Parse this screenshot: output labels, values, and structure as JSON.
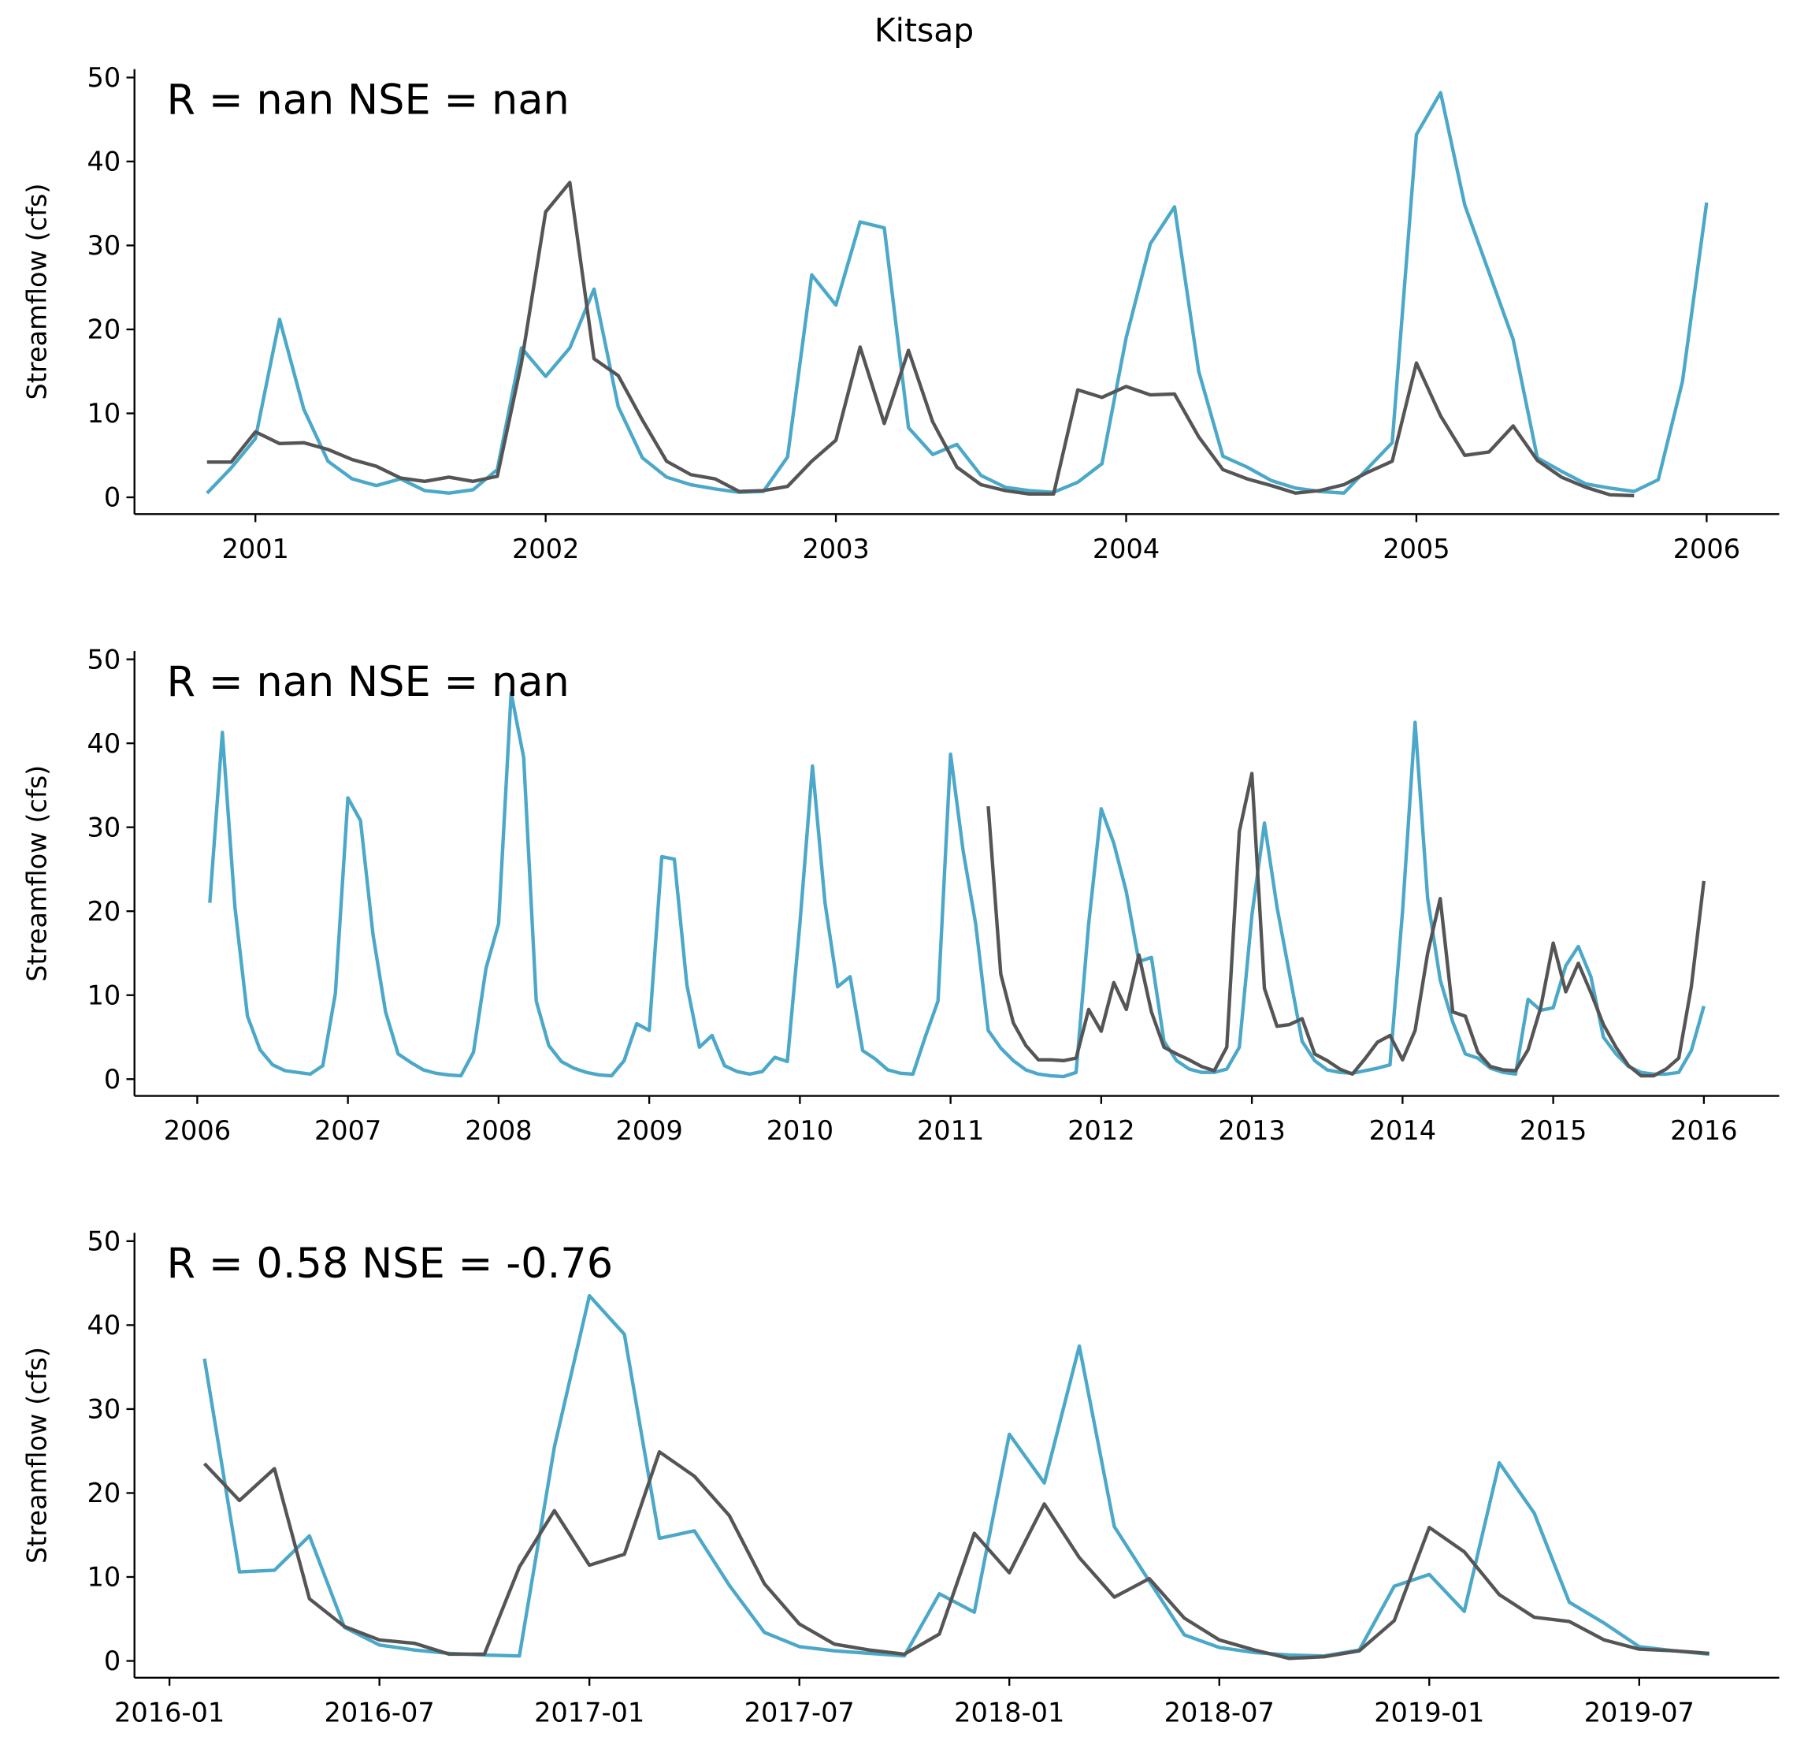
{
  "title": "Kitsap",
  "chart_data": [
    {
      "type": "line",
      "annotation": "R = nan  NSE = nan",
      "ylabel": "Streamflow (cfs)",
      "xlim": [
        "2000-08",
        "2006-04"
      ],
      "ylim": [
        -2,
        51
      ],
      "yticks": [
        0,
        10,
        20,
        30,
        40,
        50
      ],
      "xticks": [
        {
          "value": "2001-01",
          "label": "2001"
        },
        {
          "value": "2002-01",
          "label": "2002"
        },
        {
          "value": "2003-01",
          "label": "2003"
        },
        {
          "value": "2004-01",
          "label": "2004"
        },
        {
          "value": "2005-01",
          "label": "2005"
        },
        {
          "value": "2006-01",
          "label": "2006"
        }
      ],
      "x": [
        "2000-11",
        "2000-12",
        "2001-01",
        "2001-02",
        "2001-03",
        "2001-04",
        "2001-05",
        "2001-06",
        "2001-07",
        "2001-08",
        "2001-09",
        "2001-10",
        "2001-11",
        "2001-12",
        "2002-01",
        "2002-02",
        "2002-03",
        "2002-04",
        "2002-05",
        "2002-06",
        "2002-07",
        "2002-08",
        "2002-09",
        "2002-10",
        "2002-11",
        "2002-12",
        "2003-01",
        "2003-02",
        "2003-03",
        "2003-04",
        "2003-05",
        "2003-06",
        "2003-07",
        "2003-08",
        "2003-09",
        "2003-10",
        "2003-11",
        "2003-12",
        "2004-01",
        "2004-02",
        "2004-03",
        "2004-04",
        "2004-05",
        "2004-06",
        "2004-07",
        "2004-08",
        "2004-09",
        "2004-10",
        "2004-11",
        "2004-12",
        "2005-01",
        "2005-02",
        "2005-03",
        "2005-04",
        "2005-05",
        "2005-06",
        "2005-07",
        "2005-08",
        "2005-09",
        "2005-10",
        "2005-11",
        "2005-12",
        "2006-01"
      ],
      "series": [
        {
          "color": "#4ba8c8",
          "values": [
            0.5,
            3.5,
            7,
            21.2,
            10.5,
            4.3,
            2.2,
            1.4,
            2.2,
            0.8,
            0.5,
            0.9,
            3.3,
            17.8,
            14.4,
            17.8,
            24.8,
            10.8,
            4.7,
            2.4,
            1.5,
            1.0,
            0.6,
            0.7,
            4.8,
            26.5,
            22.9,
            32.8,
            32.1,
            8.3,
            5.1,
            6.3,
            2.6,
            1.2,
            0.8,
            0.6,
            1.8,
            4.0,
            19,
            30.2,
            34.6,
            15,
            4.9,
            3.6,
            2.0,
            1.1,
            0.7,
            0.5,
            3.5,
            6.5,
            43.2,
            48.2,
            34.8,
            26.8,
            18.8,
            4.7,
            3.1,
            1.6,
            1.1,
            0.7,
            2.1,
            13.8,
            35.1
          ]
        },
        {
          "color": "#555555",
          "values": [
            4.2,
            4.2,
            7.8,
            6.4,
            6.5,
            5.7,
            4.5,
            3.7,
            2.3,
            1.9,
            2.4,
            1.9,
            2.5,
            16,
            34,
            37.5,
            16.5,
            14.5,
            9.2,
            4.3,
            2.7,
            2.2,
            0.7,
            0.8,
            1.3,
            4.3,
            6.8,
            17.9,
            8.8,
            17.5,
            9,
            3.6,
            1.5,
            0.8,
            0.4,
            0.4,
            12.8,
            11.9,
            13.2,
            12.2,
            12.3,
            7.2,
            3.3,
            2.2,
            1.4,
            0.5,
            0.8,
            1.5,
            3.0,
            4.3,
            16,
            9.7,
            5,
            5.4,
            8.5,
            4.4,
            2.4,
            1.2,
            0.3,
            0.2,
            null,
            null,
            null
          ]
        }
      ]
    },
    {
      "type": "line",
      "annotation": "R = nan  NSE = nan",
      "ylabel": "Streamflow (cfs)",
      "xlim": [
        "2005-08",
        "2016-07"
      ],
      "ylim": [
        -2,
        51
      ],
      "yticks": [
        0,
        10,
        20,
        30,
        40,
        50
      ],
      "xticks": [
        {
          "value": "2006-01",
          "label": "2006"
        },
        {
          "value": "2007-01",
          "label": "2007"
        },
        {
          "value": "2008-01",
          "label": "2008"
        },
        {
          "value": "2009-01",
          "label": "2009"
        },
        {
          "value": "2010-01",
          "label": "2010"
        },
        {
          "value": "2011-01",
          "label": "2011"
        },
        {
          "value": "2012-01",
          "label": "2012"
        },
        {
          "value": "2013-01",
          "label": "2013"
        },
        {
          "value": "2014-01",
          "label": "2014"
        },
        {
          "value": "2015-01",
          "label": "2015"
        },
        {
          "value": "2016-01",
          "label": "2016"
        }
      ],
      "x": [
        "2006-02",
        "2006-03",
        "2006-04",
        "2006-05",
        "2006-06",
        "2006-07",
        "2006-08",
        "2006-09",
        "2006-10",
        "2006-11",
        "2006-12",
        "2007-01",
        "2007-02",
        "2007-03",
        "2007-04",
        "2007-05",
        "2007-06",
        "2007-07",
        "2007-08",
        "2007-09",
        "2007-10",
        "2007-11",
        "2007-12",
        "2008-01",
        "2008-02",
        "2008-03",
        "2008-04",
        "2008-05",
        "2008-06",
        "2008-07",
        "2008-08",
        "2008-09",
        "2008-10",
        "2008-11",
        "2008-12",
        "2009-01",
        "2009-02",
        "2009-03",
        "2009-04",
        "2009-05",
        "2009-06",
        "2009-07",
        "2009-08",
        "2009-09",
        "2009-10",
        "2009-11",
        "2009-12",
        "2010-01",
        "2010-02",
        "2010-03",
        "2010-04",
        "2010-05",
        "2010-06",
        "2010-07",
        "2010-08",
        "2010-09",
        "2010-10",
        "2010-11",
        "2010-12",
        "2011-01",
        "2011-02",
        "2011-03",
        "2011-04",
        "2011-05",
        "2011-06",
        "2011-07",
        "2011-08",
        "2011-09",
        "2011-10",
        "2011-11",
        "2011-12",
        "2012-01",
        "2012-02",
        "2012-03",
        "2012-04",
        "2012-05",
        "2012-06",
        "2012-07",
        "2012-08",
        "2012-09",
        "2012-10",
        "2012-11",
        "2012-12",
        "2013-01",
        "2013-02",
        "2013-03",
        "2013-04",
        "2013-05",
        "2013-06",
        "2013-07",
        "2013-08",
        "2013-09",
        "2013-10",
        "2013-11",
        "2013-12",
        "2014-01",
        "2014-02",
        "2014-03",
        "2014-04",
        "2014-05",
        "2014-06",
        "2014-07",
        "2014-08",
        "2014-09",
        "2014-10",
        "2014-11",
        "2014-12",
        "2015-01",
        "2015-02",
        "2015-03",
        "2015-04",
        "2015-05",
        "2015-06",
        "2015-07",
        "2015-08",
        "2015-09",
        "2015-10",
        "2015-11",
        "2015-12",
        "2016-01"
      ],
      "series": [
        {
          "color": "#4ba8c8",
          "values": [
            21,
            41.3,
            20.5,
            7.5,
            3.5,
            1.7,
            1,
            0.8,
            0.6,
            1.6,
            10.2,
            33.5,
            30.8,
            17.2,
            8,
            3,
            2,
            1.1,
            0.7,
            0.5,
            0.4,
            3.2,
            13.2,
            18.5,
            46,
            38.3,
            9.3,
            4,
            2.1,
            1.3,
            0.8,
            0.5,
            0.4,
            2.2,
            6.6,
            5.8,
            26.5,
            26.2,
            11.2,
            3.8,
            5.2,
            1.6,
            0.9,
            0.6,
            0.9,
            2.6,
            2.1,
            18.5,
            37.3,
            21,
            11,
            12.2,
            3.4,
            2.4,
            1.1,
            0.7,
            0.6,
            5.1,
            9.3,
            38.7,
            27.2,
            18.5,
            5.8,
            3.7,
            2.2,
            1.1,
            0.6,
            0.4,
            0.3,
            0.8,
            18.5,
            32.2,
            28.1,
            22.3,
            14,
            14.5,
            4.5,
            2.2,
            1.2,
            0.8,
            0.8,
            1.2,
            3.8,
            19.5,
            30.5,
            20.5,
            12.5,
            4.5,
            2.2,
            1.1,
            0.8,
            0.7,
            1.0,
            1.3,
            1.7,
            20,
            42.5,
            21.5,
            11.8,
            6.8,
            3,
            2.5,
            1.3,
            0.8,
            0.6,
            9.5,
            8.2,
            8.5,
            13.5,
            15.8,
            12.2,
            5,
            3,
            1.5,
            0.8,
            0.6,
            0.6,
            0.8,
            3.4,
            8.7
          ]
        },
        {
          "color": "#555555",
          "values": [
            null,
            null,
            null,
            null,
            null,
            null,
            null,
            null,
            null,
            null,
            null,
            null,
            null,
            null,
            null,
            null,
            null,
            null,
            null,
            null,
            null,
            null,
            null,
            null,
            null,
            null,
            null,
            null,
            null,
            null,
            null,
            null,
            null,
            null,
            null,
            null,
            null,
            null,
            null,
            null,
            null,
            null,
            null,
            null,
            null,
            null,
            null,
            null,
            null,
            null,
            null,
            null,
            null,
            null,
            null,
            null,
            null,
            null,
            null,
            null,
            null,
            null,
            32.5,
            12.5,
            6.7,
            4,
            2.3,
            2.3,
            2.2,
            2.5,
            8.3,
            5.7,
            11.5,
            8.3,
            14.8,
            8,
            3.8,
            3,
            2.3,
            1.5,
            1,
            3.8,
            29.5,
            36.4,
            10.8,
            6.3,
            6.5,
            7.2,
            3,
            2.2,
            1.2,
            0.6,
            2.4,
            4.4,
            5.2,
            2.3,
            5.8,
            15,
            21.5,
            8,
            7.5,
            3.2,
            1.5,
            1.1,
            1,
            3.5,
            8.5,
            16.2,
            10.4,
            13.8,
            10.3,
            6.5,
            3.8,
            1.6,
            0.4,
            0.4,
            1.2,
            2.5,
            11,
            23.6
          ]
        }
      ]
    },
    {
      "type": "line",
      "annotation": "R = 0.58  NSE = -0.76",
      "ylabel": "Streamflow (cfs)",
      "xlim": [
        "2015-12",
        "2019-11"
      ],
      "ylim": [
        -2,
        51
      ],
      "yticks": [
        0,
        10,
        20,
        30,
        40,
        50
      ],
      "xticks": [
        "2016-01",
        "2016-07",
        "2017-01",
        "2017-07",
        "2018-01",
        "2018-07",
        "2019-01",
        "2019-07"
      ],
      "x": [
        "2016-02",
        "2016-03",
        "2016-04",
        "2016-05",
        "2016-06",
        "2016-07",
        "2016-08",
        "2016-09",
        "2016-10",
        "2016-11",
        "2016-12",
        "2017-01",
        "2017-02",
        "2017-03",
        "2017-04",
        "2017-05",
        "2017-06",
        "2017-07",
        "2017-08",
        "2017-09",
        "2017-10",
        "2017-11",
        "2017-12",
        "2018-01",
        "2018-02",
        "2018-03",
        "2018-04",
        "2018-05",
        "2018-06",
        "2018-07",
        "2018-08",
        "2018-09",
        "2018-10",
        "2018-11",
        "2018-12",
        "2019-01",
        "2019-02",
        "2019-03",
        "2019-04",
        "2019-05",
        "2019-06",
        "2019-07",
        "2019-08",
        "2019-09"
      ],
      "series": [
        {
          "color": "#4ba8c8",
          "values": [
            36,
            10.6,
            10.8,
            14.9,
            4,
            1.9,
            1.3,
            0.9,
            0.7,
            0.6,
            25.5,
            43.5,
            38.9,
            14.6,
            15.5,
            9,
            3.4,
            1.7,
            1.2,
            0.9,
            0.6,
            8,
            5.8,
            27,
            21.2,
            37.5,
            16,
            9.5,
            3.1,
            1.6,
            1,
            0.7,
            0.6,
            1.3,
            8.9,
            10.3,
            5.9,
            23.6,
            17.6,
            7,
            4.5,
            1.7,
            1.2,
            0.8
          ]
        },
        {
          "color": "#555555",
          "values": [
            23.5,
            19.1,
            22.9,
            7.4,
            4.1,
            2.5,
            2.1,
            0.8,
            0.8,
            11.2,
            17.9,
            11.4,
            12.7,
            24.9,
            22,
            17.3,
            9.2,
            4.4,
            2,
            1.3,
            0.8,
            3.2,
            15.2,
            10.5,
            18.7,
            12.3,
            7.6,
            9.8,
            5.1,
            2.5,
            1.3,
            0.3,
            0.5,
            1.2,
            4.8,
            15.9,
            13,
            7.9,
            5.2,
            4.7,
            2.5,
            1.4,
            1.2,
            0.9
          ]
        }
      ]
    }
  ]
}
